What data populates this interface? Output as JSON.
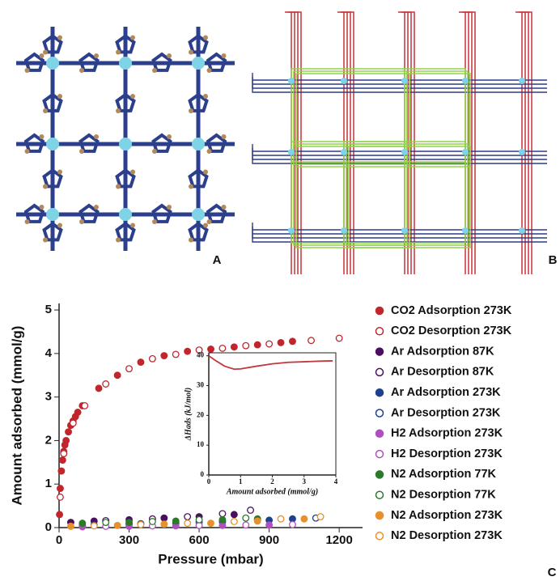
{
  "panel_labels": [
    "A",
    "B",
    "C"
  ],
  "chart_data": [
    {
      "type": "scatter",
      "xlabel": "Pressure (mbar)",
      "ylabel": "Amount adsorbed (mmol/g)",
      "xlim": [
        0,
        1300
      ],
      "xticks": [
        0,
        300,
        600,
        900,
        1200
      ],
      "ylim": [
        0,
        5.15
      ],
      "yticks": [
        0,
        1,
        2,
        3,
        4,
        5
      ],
      "grid": false,
      "legend": "right",
      "series": [
        {
          "name": "CO2 Adsorption 273K",
          "color": "#c0262c",
          "marker": "filled",
          "x": [
            2,
            5,
            10,
            15,
            20,
            25,
            30,
            40,
            50,
            60,
            70,
            80,
            100,
            170,
            250,
            350,
            450,
            550,
            650,
            750,
            850,
            950,
            1000
          ],
          "values": [
            0.3,
            0.9,
            1.3,
            1.55,
            1.75,
            1.9,
            2.0,
            2.2,
            2.35,
            2.45,
            2.55,
            2.65,
            2.8,
            3.2,
            3.5,
            3.8,
            3.95,
            4.05,
            4.1,
            4.15,
            4.2,
            4.25,
            4.28
          ]
        },
        {
          "name": "CO2 Desorption 273K",
          "color": "#c0262c",
          "marker": "open",
          "x": [
            1200,
            1080,
            900,
            800,
            700,
            600,
            500,
            400,
            300,
            200,
            110,
            60,
            20,
            5
          ],
          "values": [
            4.35,
            4.3,
            4.22,
            4.18,
            4.12,
            4.08,
            3.98,
            3.88,
            3.65,
            3.3,
            2.8,
            2.4,
            1.7,
            0.7
          ]
        },
        {
          "name": "Ar Adsorption 87K",
          "color": "#4b0f5f",
          "marker": "filled",
          "x": [
            50,
            150,
            300,
            450,
            600,
            750
          ],
          "values": [
            0.12,
            0.15,
            0.18,
            0.22,
            0.25,
            0.3
          ]
        },
        {
          "name": "Ar Desorption 87K",
          "color": "#4b0f5f",
          "marker": "open",
          "x": [
            820,
            700,
            550,
            400,
            200
          ],
          "values": [
            0.4,
            0.32,
            0.25,
            0.2,
            0.16
          ]
        },
        {
          "name": "Ar Adsorption 273K",
          "color": "#1f3f8f",
          "marker": "filled",
          "x": [
            100,
            300,
            500,
            700,
            900,
            1000
          ],
          "values": [
            0.05,
            0.08,
            0.1,
            0.13,
            0.17,
            0.2
          ]
        },
        {
          "name": "Ar Desorption 273K",
          "color": "#1f3f8f",
          "marker": "open",
          "x": [
            1100,
            850,
            600,
            350,
            150
          ],
          "values": [
            0.22,
            0.18,
            0.12,
            0.09,
            0.06
          ]
        },
        {
          "name": "H2 Adsorption 273K",
          "color": "#b050c0",
          "marker": "filled",
          "x": [
            100,
            300,
            500,
            700,
            900
          ],
          "values": [
            0.02,
            0.03,
            0.04,
            0.05,
            0.06
          ]
        },
        {
          "name": "H2 Desorption 273K",
          "color": "#b050c0",
          "marker": "open",
          "x": [
            1000,
            800,
            600,
            400,
            200
          ],
          "values": [
            0.07,
            0.06,
            0.05,
            0.04,
            0.03
          ]
        },
        {
          "name": "N2 Adsorption 77K",
          "color": "#2a7a2a",
          "marker": "filled",
          "x": [
            100,
            300,
            500,
            700,
            850
          ],
          "values": [
            0.1,
            0.12,
            0.15,
            0.18,
            0.2
          ]
        },
        {
          "name": "N2 Desorption 77K",
          "color": "#2a7a2a",
          "marker": "open",
          "x": [
            800,
            600,
            400,
            200
          ],
          "values": [
            0.22,
            0.18,
            0.14,
            0.12
          ]
        },
        {
          "name": "N2 Adsorption 273K",
          "color": "#e8902c",
          "marker": "filled",
          "x": [
            50,
            250,
            450,
            650,
            850,
            1050
          ],
          "values": [
            0.03,
            0.05,
            0.08,
            0.1,
            0.15,
            0.2
          ]
        },
        {
          "name": "N2 Desorption 273K",
          "color": "#e8902c",
          "marker": "open",
          "x": [
            1120,
            950,
            750,
            550,
            350,
            150
          ],
          "values": [
            0.25,
            0.2,
            0.14,
            0.1,
            0.07,
            0.04
          ]
        }
      ]
    },
    {
      "type": "line",
      "xlabel": "Amount adsorbed (mmol/g)",
      "ylabel": "ΔHads (kJ/mol)",
      "xlim": [
        0,
        4
      ],
      "xticks": [
        0,
        1,
        2,
        3,
        4
      ],
      "ylim": [
        0,
        41
      ],
      "yticks": [
        0,
        10,
        20,
        30,
        40
      ],
      "color": "#c0393b",
      "x": [
        0.0,
        0.2,
        0.5,
        0.8,
        1.0,
        1.5,
        2.0,
        2.5,
        3.0,
        3.5,
        3.9
      ],
      "values": [
        40,
        38.5,
        36.5,
        35.5,
        35.6,
        36.5,
        37.3,
        37.8,
        38,
        38.2,
        38.3
      ]
    }
  ]
}
